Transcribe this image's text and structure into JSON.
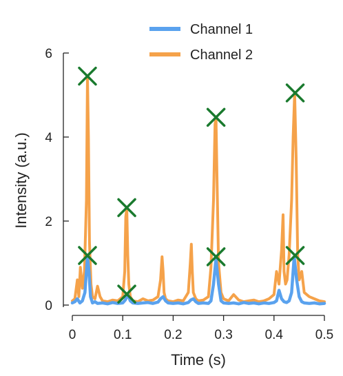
{
  "chart_data": {
    "type": "line",
    "title": "",
    "xlabel": "Time (s)",
    "ylabel": "Intensity (a.u.)",
    "xlim": [
      0,
      0.5
    ],
    "ylim": [
      0,
      6
    ],
    "x_ticks": [
      0,
      0.1,
      0.2,
      0.3,
      0.4,
      0.5
    ],
    "x_tick_labels": [
      "0",
      "0.1",
      "0.2",
      "0.3",
      "0.4",
      "0.5"
    ],
    "y_ticks": [
      0,
      2,
      4,
      6
    ],
    "y_tick_labels": [
      "0",
      "2",
      "4",
      "6"
    ],
    "grid": false,
    "legend_position": "top-right",
    "series": [
      {
        "name": "Channel 1",
        "color": "#5aa2ee",
        "x": [
          0,
          0.005,
          0.01,
          0.015,
          0.02,
          0.025,
          0.03,
          0.033,
          0.036,
          0.04,
          0.045,
          0.05,
          0.06,
          0.07,
          0.08,
          0.09,
          0.1,
          0.105,
          0.11,
          0.115,
          0.12,
          0.13,
          0.14,
          0.15,
          0.16,
          0.17,
          0.175,
          0.18,
          0.185,
          0.19,
          0.2,
          0.21,
          0.22,
          0.23,
          0.235,
          0.24,
          0.245,
          0.25,
          0.26,
          0.27,
          0.275,
          0.28,
          0.285,
          0.29,
          0.295,
          0.3,
          0.31,
          0.32,
          0.33,
          0.34,
          0.35,
          0.36,
          0.37,
          0.38,
          0.39,
          0.4,
          0.405,
          0.41,
          0.415,
          0.42,
          0.425,
          0.43,
          0.435,
          0.44,
          0.445,
          0.45,
          0.455,
          0.46,
          0.47,
          0.48,
          0.49,
          0.5
        ],
        "y": [
          0.05,
          0.08,
          0.15,
          0.05,
          0.1,
          0.3,
          1.15,
          0.8,
          0.2,
          0.05,
          0.08,
          0.04,
          0.05,
          0.03,
          0.06,
          0.04,
          0.05,
          0.12,
          0.25,
          0.1,
          0.05,
          0.04,
          0.05,
          0.06,
          0.04,
          0.07,
          0.15,
          0.2,
          0.1,
          0.05,
          0.04,
          0.05,
          0.03,
          0.06,
          0.12,
          0.15,
          0.08,
          0.04,
          0.05,
          0.04,
          0.1,
          0.5,
          1.1,
          0.5,
          0.1,
          0.05,
          0.04,
          0.05,
          0.03,
          0.06,
          0.04,
          0.05,
          0.03,
          0.05,
          0.04,
          0.06,
          0.1,
          0.35,
          0.15,
          0.08,
          0.06,
          0.1,
          0.3,
          1.15,
          0.6,
          0.2,
          0.08,
          0.05,
          0.04,
          0.05,
          0.03,
          0.04
        ],
        "peaks": [
          {
            "x": 0.03,
            "y": 1.18
          },
          {
            "x": 0.108,
            "y": 0.26
          },
          {
            "x": 0.285,
            "y": 1.15
          },
          {
            "x": 0.442,
            "y": 1.18
          }
        ]
      },
      {
        "name": "Channel 2",
        "color": "#f5a24a",
        "x": [
          0,
          0.005,
          0.01,
          0.013,
          0.016,
          0.02,
          0.024,
          0.028,
          0.03,
          0.032,
          0.034,
          0.037,
          0.04,
          0.045,
          0.05,
          0.055,
          0.06,
          0.07,
          0.08,
          0.09,
          0.1,
          0.104,
          0.106,
          0.108,
          0.11,
          0.112,
          0.115,
          0.12,
          0.13,
          0.14,
          0.15,
          0.16,
          0.17,
          0.175,
          0.178,
          0.18,
          0.182,
          0.185,
          0.19,
          0.2,
          0.21,
          0.22,
          0.23,
          0.234,
          0.236,
          0.238,
          0.24,
          0.245,
          0.25,
          0.26,
          0.27,
          0.275,
          0.28,
          0.283,
          0.285,
          0.287,
          0.29,
          0.295,
          0.3,
          0.31,
          0.32,
          0.33,
          0.34,
          0.35,
          0.36,
          0.37,
          0.38,
          0.39,
          0.4,
          0.405,
          0.41,
          0.415,
          0.418,
          0.42,
          0.423,
          0.426,
          0.43,
          0.435,
          0.438,
          0.441,
          0.444,
          0.447,
          0.45,
          0.455,
          0.46,
          0.47,
          0.48,
          0.49,
          0.5
        ],
        "y": [
          0.1,
          0.15,
          0.6,
          0.2,
          0.9,
          0.4,
          0.8,
          2.5,
          5.45,
          4.0,
          1.5,
          0.5,
          0.2,
          0.15,
          0.45,
          0.2,
          0.1,
          0.08,
          0.12,
          0.1,
          0.2,
          0.8,
          2.1,
          2.3,
          1.2,
          0.5,
          0.2,
          0.1,
          0.08,
          0.15,
          0.1,
          0.12,
          0.2,
          0.6,
          1.15,
          0.8,
          0.3,
          0.15,
          0.1,
          0.08,
          0.12,
          0.1,
          0.3,
          1.0,
          1.45,
          0.8,
          0.3,
          0.15,
          0.1,
          0.12,
          0.2,
          0.9,
          2.5,
          4.3,
          4.45,
          3.0,
          1.0,
          0.3,
          0.15,
          0.1,
          0.25,
          0.12,
          0.08,
          0.1,
          0.12,
          0.08,
          0.1,
          0.15,
          0.25,
          0.8,
          0.5,
          1.3,
          2.15,
          0.8,
          0.5,
          0.6,
          1.2,
          2.5,
          4.0,
          5.05,
          3.5,
          1.2,
          0.6,
          0.8,
          0.3,
          0.2,
          0.15,
          0.1,
          0.08
        ],
        "peaks": [
          {
            "x": 0.03,
            "y": 5.45
          },
          {
            "x": 0.108,
            "y": 2.32
          },
          {
            "x": 0.285,
            "y": 4.47
          },
          {
            "x": 0.442,
            "y": 5.05
          }
        ]
      }
    ],
    "marker_color": "#1a7a2e"
  }
}
